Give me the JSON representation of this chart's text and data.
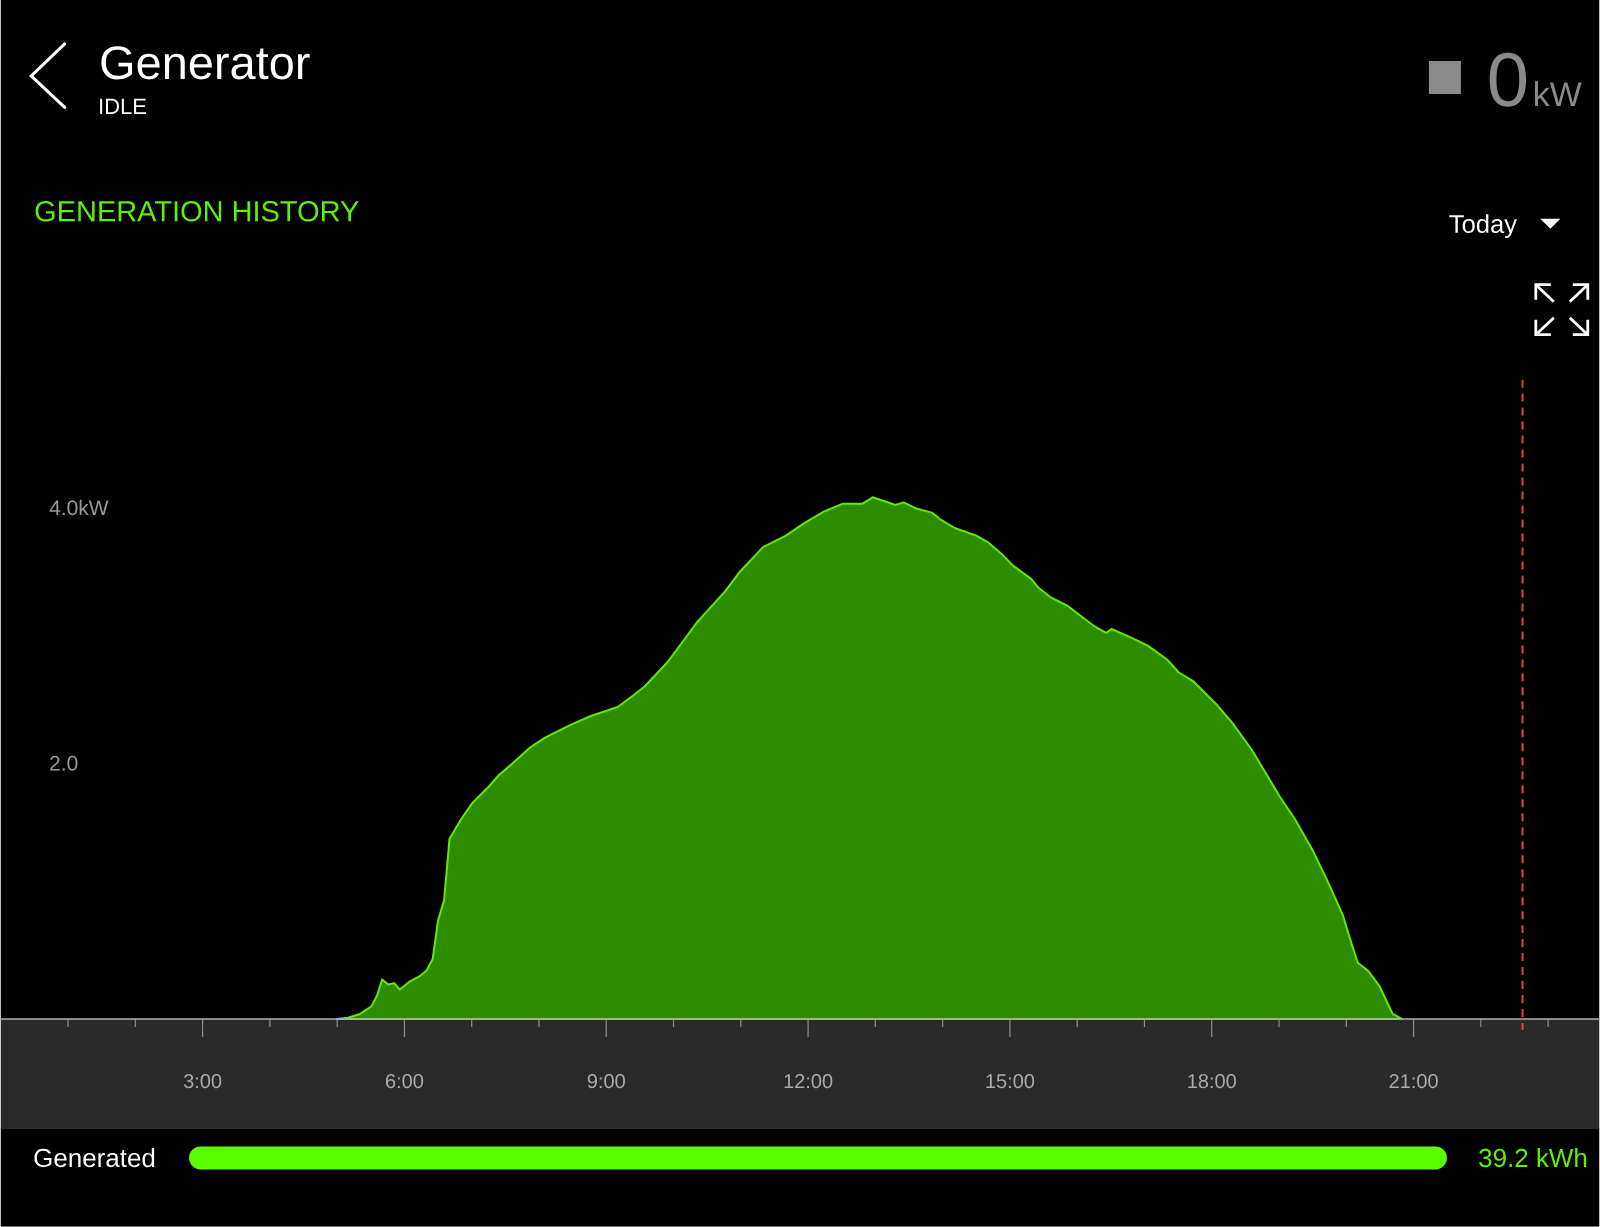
{
  "chart_data": {
    "type": "area",
    "title": "GENERATION HISTORY",
    "annotations": [
      "Generator",
      "IDLE",
      "0",
      "kW",
      "Today",
      "Generated",
      "39.2 kWh"
    ],
    "x": [
      5.0,
      5.16,
      5.34,
      5.51,
      5.59,
      5.67,
      5.76,
      5.85,
      5.93,
      6.07,
      6.24,
      6.33,
      6.42,
      6.5,
      6.59,
      6.67,
      6.84,
      7.01,
      7.24,
      7.41,
      7.61,
      7.86,
      8.09,
      8.43,
      8.77,
      9.17,
      9.4,
      9.57,
      9.91,
      10.36,
      10.76,
      10.99,
      11.33,
      11.67,
      11.95,
      12.24,
      12.52,
      12.81,
      12.96,
      13.3,
      13.42,
      13.62,
      13.84,
      13.96,
      14.18,
      14.5,
      14.67,
      14.89,
      15.06,
      15.32,
      15.43,
      15.6,
      15.86,
      16.26,
      16.43,
      16.51,
      16.77,
      17.05,
      17.34,
      17.51,
      17.73,
      18.07,
      18.3,
      18.59,
      18.84,
      19.01,
      19.24,
      19.5,
      19.72,
      19.95,
      20.06,
      20.17,
      20.32,
      20.49,
      20.69,
      20.83
    ],
    "values": [
      0,
      0.01,
      0.04,
      0.1,
      0.18,
      0.31,
      0.27,
      0.28,
      0.23,
      0.29,
      0.34,
      0.38,
      0.47,
      0.77,
      0.93,
      1.41,
      1.56,
      1.69,
      1.81,
      1.91,
      2.0,
      2.12,
      2.2,
      2.29,
      2.37,
      2.44,
      2.53,
      2.6,
      2.79,
      3.11,
      3.34,
      3.5,
      3.69,
      3.78,
      3.88,
      3.97,
      4.03,
      4.03,
      4.08,
      4.02,
      4.04,
      3.99,
      3.96,
      3.91,
      3.84,
      3.78,
      3.73,
      3.63,
      3.54,
      3.44,
      3.37,
      3.3,
      3.23,
      3.07,
      3.02,
      3.05,
      2.99,
      2.92,
      2.81,
      2.71,
      2.64,
      2.46,
      2.32,
      2.11,
      1.89,
      1.74,
      1.56,
      1.32,
      1.08,
      0.81,
      0.62,
      0.44,
      0.38,
      0.26,
      0.04,
      0
    ],
    "color": "#2e8c00",
    "xlim": [
      0,
      23.76
    ],
    "xticks": [
      {
        "value": 1,
        "label": null
      },
      {
        "value": 2,
        "label": null
      },
      {
        "value": 3,
        "label": "3:00"
      },
      {
        "value": 4,
        "label": null
      },
      {
        "value": 5,
        "label": null
      },
      {
        "value": 6,
        "label": "6:00"
      },
      {
        "value": 7,
        "label": null
      },
      {
        "value": 8,
        "label": null
      },
      {
        "value": 9,
        "label": "9:00"
      },
      {
        "value": 10,
        "label": null
      },
      {
        "value": 11,
        "label": null
      },
      {
        "value": 12,
        "label": "12:00"
      },
      {
        "value": 13,
        "label": null
      },
      {
        "value": 14,
        "label": null
      },
      {
        "value": 15,
        "label": "15:00"
      },
      {
        "value": 16,
        "label": null
      },
      {
        "value": 17,
        "label": null
      },
      {
        "value": 18,
        "label": "18:00"
      },
      {
        "value": 19,
        "label": null
      },
      {
        "value": 20,
        "label": null
      },
      {
        "value": 21,
        "label": "21:00"
      },
      {
        "value": 22,
        "label": null
      },
      {
        "value": 23,
        "label": null
      }
    ],
    "ylim": [
      0,
      5
    ],
    "yticks": [
      {
        "value": 2,
        "label": "2.0"
      },
      {
        "value": 4,
        "label": "4.0kW"
      }
    ],
    "ref_lines": [
      {
        "axis": "x",
        "value": 22.62,
        "color": "#e8481e",
        "line_style": "dashed"
      }
    ]
  }
}
